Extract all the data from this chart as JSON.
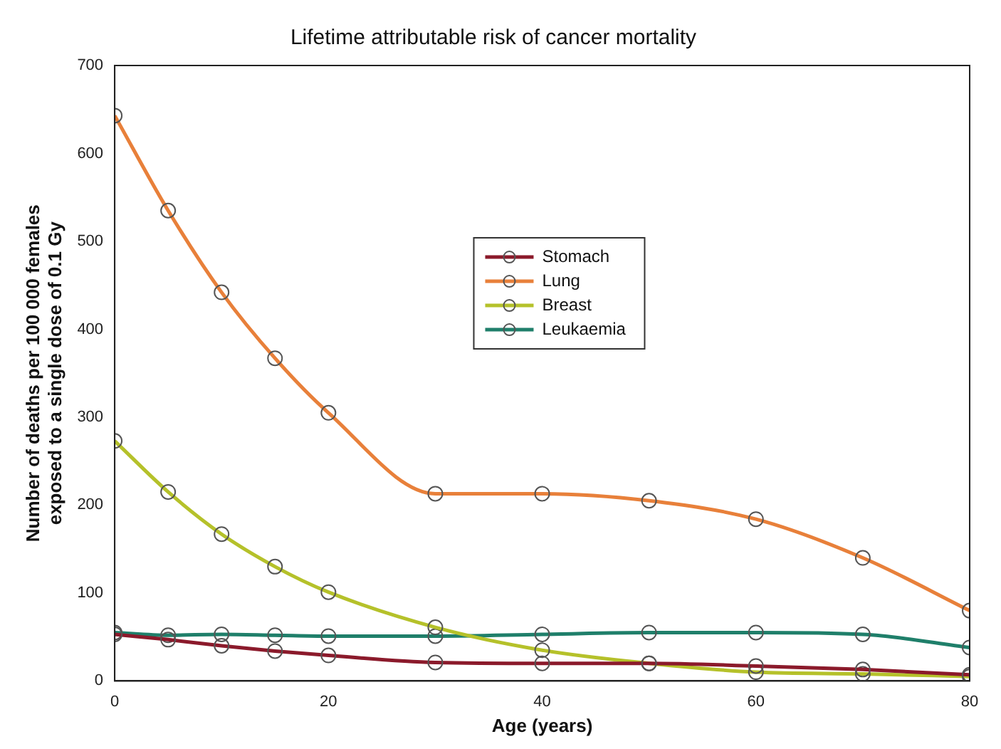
{
  "chart_data": {
    "type": "line",
    "title": "Lifetime attributable risk of cancer mortality",
    "xlabel": "Age (years)",
    "ylabel": "Number of deaths per 100 000 females\nexposed to a single dose of 0.1 Gy",
    "x": [
      0,
      5,
      10,
      15,
      20,
      30,
      40,
      50,
      60,
      70,
      80
    ],
    "series": [
      {
        "name": "Stomach",
        "color": "#8b1a2b",
        "values": [
          53,
          47,
          40,
          34,
          29,
          21,
          20,
          20,
          17,
          13,
          7
        ]
      },
      {
        "name": "Lung",
        "color": "#e8803a",
        "values": [
          643,
          535,
          442,
          367,
          305,
          213,
          213,
          205,
          184,
          140,
          80
        ]
      },
      {
        "name": "Breast",
        "color": "#b5c12a",
        "values": [
          273,
          215,
          167,
          130,
          101,
          61,
          35,
          20,
          10,
          8,
          5
        ]
      },
      {
        "name": "Leukaemia",
        "color": "#1f7f6a",
        "values": [
          55,
          52,
          53,
          52,
          51,
          51,
          53,
          55,
          55,
          53,
          38
        ]
      }
    ],
    "xlim": [
      0,
      80
    ],
    "xticks": [
      0,
      20,
      40,
      60,
      80
    ],
    "ylim": [
      0,
      700
    ],
    "yticks": [
      0,
      100,
      200,
      300,
      400,
      500,
      600,
      700
    ],
    "grid": false,
    "legend": "top",
    "marker": "circle",
    "line_style": "solid"
  }
}
